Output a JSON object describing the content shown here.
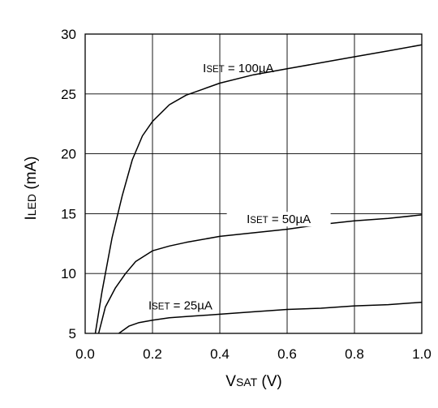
{
  "chart_data": {
    "type": "line",
    "title": "",
    "xlabel": "VSAT (V)",
    "xlabel_main": "V",
    "xlabel_sub": "SAT",
    "xlabel_unit": " (V)",
    "ylabel": "ILED (mA)",
    "ylabel_main": "I",
    "ylabel_sub": "LED",
    "ylabel_unit": " (mA)",
    "xlim": [
      0.0,
      1.0
    ],
    "ylim": [
      5,
      30
    ],
    "x_ticks": [
      0.0,
      0.2,
      0.4,
      0.6,
      0.8,
      1.0
    ],
    "x_tick_labels": [
      "0.0",
      "0.2",
      "0.4",
      "0.6",
      "0.8",
      "1.0"
    ],
    "y_ticks": [
      5,
      10,
      15,
      20,
      25,
      30
    ],
    "y_tick_labels": [
      "5",
      "10",
      "15",
      "20",
      "25",
      "30"
    ],
    "grid": true,
    "legend": "none",
    "series": [
      {
        "name": "ISET = 100µA",
        "label_main": "I",
        "label_sub": "SET",
        "label_rest": " = 100µA",
        "x": [
          0.03,
          0.05,
          0.08,
          0.11,
          0.14,
          0.17,
          0.2,
          0.25,
          0.3,
          0.35,
          0.4,
          0.5,
          0.6,
          0.7,
          0.8,
          0.9,
          1.0
        ],
        "y": [
          5,
          8.5,
          13,
          16.5,
          19.5,
          21.5,
          22.7,
          24.1,
          24.9,
          25.4,
          25.9,
          26.6,
          27.1,
          27.6,
          28.1,
          28.6,
          29.1
        ]
      },
      {
        "name": "ISET = 50µA",
        "label_main": "I",
        "label_sub": "SET",
        "label_rest": " = 50µA",
        "x": [
          0.04,
          0.06,
          0.09,
          0.12,
          0.15,
          0.2,
          0.25,
          0.3,
          0.4,
          0.5,
          0.6,
          0.7,
          0.8,
          0.9,
          1.0
        ],
        "y": [
          5,
          7.2,
          8.8,
          10,
          11,
          11.9,
          12.3,
          12.6,
          13.1,
          13.4,
          13.7,
          14.1,
          14.4,
          14.6,
          14.9
        ]
      },
      {
        "name": "ISET = 25µA",
        "label_main": "I",
        "label_sub": "SET",
        "label_rest": " = 25µA",
        "x": [
          0.1,
          0.13,
          0.16,
          0.2,
          0.25,
          0.3,
          0.4,
          0.5,
          0.6,
          0.7,
          0.8,
          0.9,
          1.0
        ],
        "y": [
          5,
          5.6,
          5.9,
          6.1,
          6.3,
          6.4,
          6.6,
          6.8,
          7,
          7.1,
          7.3,
          7.4,
          7.6
        ]
      }
    ]
  }
}
